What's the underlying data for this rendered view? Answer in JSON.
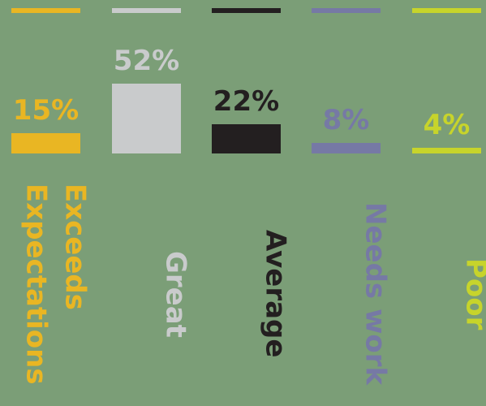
{
  "chart_data": {
    "type": "bar",
    "categories": [
      "Exceeds Expectations",
      "Great",
      "Average",
      "Needs work",
      "Poor"
    ],
    "values": [
      15,
      52,
      22,
      8,
      4
    ],
    "value_labels": [
      "15%",
      "52%",
      "22%",
      "8%",
      "4%"
    ],
    "colors": [
      "#e9b623",
      "#c9cbcc",
      "#231f20",
      "#7679a5",
      "#c7d42b"
    ]
  }
}
